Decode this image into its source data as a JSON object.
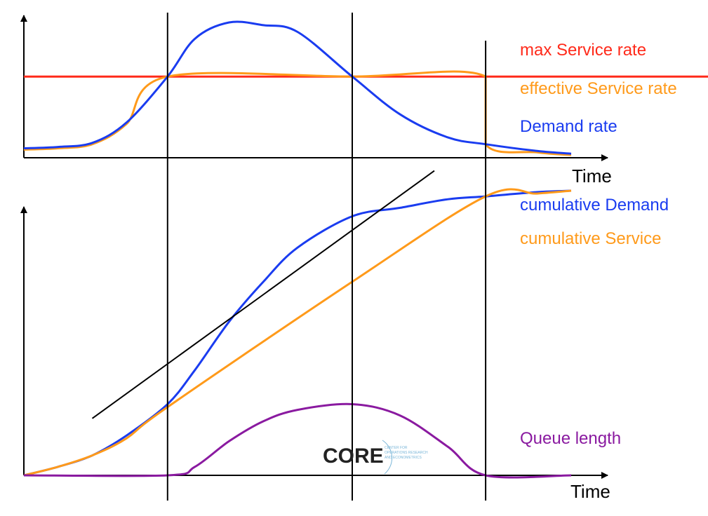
{
  "colors": {
    "max_service": "#ff2a1a",
    "effective_service": "#ff9a1a",
    "demand": "#1a3cf0",
    "queue": "#8a1aa0",
    "axis": "#000000",
    "logo_accent": "#7ab6d8"
  },
  "logo": {
    "word": "CORE",
    "sub_lines": [
      "CENTER FOR",
      "OPERATIONS RESEARCH",
      "AND ECONOMETRICS"
    ]
  },
  "chart_data": [
    {
      "type": "line",
      "xlabel": "Time",
      "ylabel": "",
      "grid": false,
      "legend_placement": "right",
      "x_range": [
        0,
        1
      ],
      "y_range": [
        0,
        1
      ],
      "event_times": [
        0.21,
        0.48,
        0.675
      ],
      "series": [
        {
          "name": "max Service rate",
          "color_key": "max_service",
          "points": [
            [
              0,
              0.6
            ],
            [
              1,
              0.6
            ]
          ]
        },
        {
          "name": "effective Service rate",
          "color_key": "effective_service",
          "points": [
            [
              0,
              0.06
            ],
            [
              0.05,
              0.07
            ],
            [
              0.1,
              0.1
            ],
            [
              0.15,
              0.25
            ],
            [
              0.21,
              0.6
            ],
            [
              0.48,
              0.6
            ],
            [
              0.675,
              0.6
            ],
            [
              0.675,
              0.1
            ],
            [
              0.75,
              0.04
            ],
            [
              0.8,
              0.02
            ]
          ]
        },
        {
          "name": "Demand rate",
          "color_key": "demand",
          "points": [
            [
              0,
              0.07
            ],
            [
              0.05,
              0.08
            ],
            [
              0.1,
              0.11
            ],
            [
              0.15,
              0.26
            ],
            [
              0.21,
              0.6
            ],
            [
              0.25,
              0.88
            ],
            [
              0.3,
              1.0
            ],
            [
              0.35,
              0.98
            ],
            [
              0.4,
              0.93
            ],
            [
              0.48,
              0.6
            ],
            [
              0.55,
              0.32
            ],
            [
              0.62,
              0.15
            ],
            [
              0.675,
              0.1
            ],
            [
              0.75,
              0.05
            ],
            [
              0.8,
              0.03
            ]
          ]
        }
      ]
    },
    {
      "type": "line",
      "xlabel": "Time",
      "ylabel": "",
      "grid": false,
      "legend_placement": "right",
      "x_range": [
        0,
        1
      ],
      "y_range": [
        0,
        1
      ],
      "event_times": [
        0.21,
        0.48,
        0.675
      ],
      "series": [
        {
          "name": "cumulative Demand",
          "color_key": "demand",
          "points": [
            [
              0,
              0.0
            ],
            [
              0.05,
              0.03
            ],
            [
              0.1,
              0.07
            ],
            [
              0.15,
              0.14
            ],
            [
              0.21,
              0.25
            ],
            [
              0.25,
              0.37
            ],
            [
              0.3,
              0.54
            ],
            [
              0.35,
              0.68
            ],
            [
              0.4,
              0.8
            ],
            [
              0.48,
              0.91
            ],
            [
              0.55,
              0.94
            ],
            [
              0.62,
              0.97
            ],
            [
              0.675,
              0.98
            ],
            [
              0.75,
              0.995
            ],
            [
              0.8,
              1.0
            ]
          ]
        },
        {
          "name": "cumulative Service",
          "color_key": "effective_service",
          "points": [
            [
              0,
              0.0
            ],
            [
              0.05,
              0.03
            ],
            [
              0.1,
              0.07
            ],
            [
              0.15,
              0.13
            ],
            [
              0.21,
              0.24
            ],
            [
              0.48,
              0.68
            ],
            [
              0.675,
              0.98
            ],
            [
              0.75,
              0.99
            ],
            [
              0.8,
              1.0
            ]
          ]
        },
        {
          "name": "",
          "color_key": "axis",
          "points": [
            [
              0.1,
              0.2
            ],
            [
              0.6,
              1.07
            ]
          ]
        },
        {
          "name": "Queue length",
          "color_key": "queue",
          "points": [
            [
              0,
              0.0
            ],
            [
              0.21,
              0.0
            ],
            [
              0.25,
              0.03
            ],
            [
              0.3,
              0.12
            ],
            [
              0.35,
              0.19
            ],
            [
              0.4,
              0.23
            ],
            [
              0.48,
              0.25
            ],
            [
              0.55,
              0.21
            ],
            [
              0.62,
              0.1
            ],
            [
              0.675,
              0.0
            ],
            [
              0.8,
              0.0
            ]
          ]
        }
      ]
    }
  ]
}
